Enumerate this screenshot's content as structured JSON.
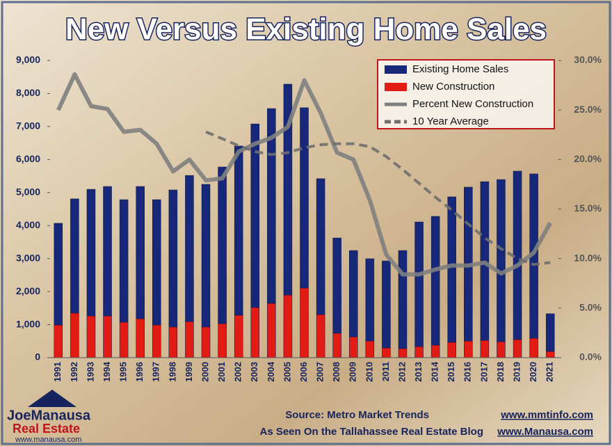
{
  "chart_data": {
    "type": "bar",
    "title": "New Versus Existing Home Sales",
    "categories": [
      "1991",
      "1992",
      "1993",
      "1994",
      "1995",
      "1996",
      "1997",
      "1998",
      "1999",
      "2000",
      "2001",
      "2002",
      "2003",
      "2004",
      "2005",
      "2006",
      "2007",
      "2008",
      "2009",
      "2010",
      "2011",
      "2012",
      "2013",
      "2014",
      "2015",
      "2016",
      "2017",
      "2018",
      "2019",
      "2020",
      "2021"
    ],
    "series": [
      {
        "name": "Existing Home Sales",
        "color": "#17287a",
        "stack": true,
        "values": [
          3080,
          3460,
          3835,
          3920,
          3710,
          4005,
          3795,
          4150,
          4425,
          4320,
          4745,
          5125,
          5560,
          5900,
          6390,
          5460,
          4115,
          2885,
          2615,
          2490,
          2635,
          2970,
          3775,
          3900,
          4405,
          4660,
          4805,
          4910,
          5100,
          4975,
          1140
        ]
      },
      {
        "name": "New Construction",
        "color": "#e21b14",
        "stack": true,
        "values": [
          990,
          1350,
          1265,
          1265,
          1075,
          1180,
          990,
          930,
          1095,
          930,
          1030,
          1285,
          1520,
          1645,
          1895,
          2110,
          1305,
          740,
          630,
          505,
          295,
          275,
          335,
          380,
          465,
          505,
          525,
          485,
          550,
          590,
          190
        ]
      },
      {
        "name": "Percent New Construction",
        "color": "#7f7f7f",
        "axis": "y2",
        "line": "solid",
        "values": [
          25.0,
          28.6,
          25.4,
          25.1,
          22.8,
          23.0,
          21.6,
          18.8,
          20.0,
          17.9,
          18.1,
          20.8,
          21.6,
          22.2,
          23.3,
          28.0,
          24.7,
          20.7,
          20.0,
          15.9,
          10.4,
          8.4,
          8.4,
          8.9,
          9.3,
          9.3,
          9.6,
          8.5,
          9.3,
          10.6,
          13.6
        ]
      },
      {
        "name": "10 Year Average",
        "color": "#6f6f6f",
        "axis": "y2",
        "line": "dashed",
        "values": [
          null,
          null,
          null,
          null,
          null,
          null,
          null,
          null,
          null,
          22.8,
          22.1,
          21.4,
          20.8,
          20.5,
          20.7,
          21.2,
          21.5,
          21.6,
          21.6,
          21.3,
          20.3,
          19.0,
          17.6,
          16.2,
          14.9,
          13.5,
          12.1,
          11.0,
          10.0,
          9.4,
          9.6
        ]
      }
    ],
    "ylim": [
      0,
      9000
    ],
    "yticks": [
      0,
      {
        "value": 1000,
        "label": "1,000"
      },
      {
        "value": 2000,
        "label": "2,000"
      },
      {
        "value": 3000,
        "label": "3,000"
      },
      {
        "value": 4000,
        "label": "4,000"
      },
      {
        "value": 5000,
        "label": "5,000"
      },
      {
        "value": 6000,
        "label": "6,000"
      },
      {
        "value": 7000,
        "label": "7,000"
      },
      {
        "value": 8000,
        "label": "8,000"
      },
      {
        "value": 9000,
        "label": "9,000"
      }
    ],
    "y2lim": [
      0,
      30
    ],
    "y2ticks": [
      {
        "value": 0,
        "label": "0.0%"
      },
      {
        "value": 5,
        "label": "5.0%"
      },
      {
        "value": 10,
        "label": "10.0%"
      },
      {
        "value": 15,
        "label": "15.0%"
      },
      {
        "value": 20,
        "label": "20.0%"
      },
      {
        "value": 25,
        "label": "25.0%"
      },
      {
        "value": 30,
        "label": "30.0%"
      }
    ],
    "legend": "top-right",
    "grid": false
  },
  "footer": {
    "source": "Source: Metro Market Trends",
    "source_url": "www.mmtinfo.com",
    "blog": "As Seen On the Tallahassee Real Estate Blog",
    "blog_url": "www.Manausa.com"
  },
  "logo": {
    "name": "JoeManausa",
    "line2": "Real Estate",
    "url": "www.manausa.com"
  }
}
